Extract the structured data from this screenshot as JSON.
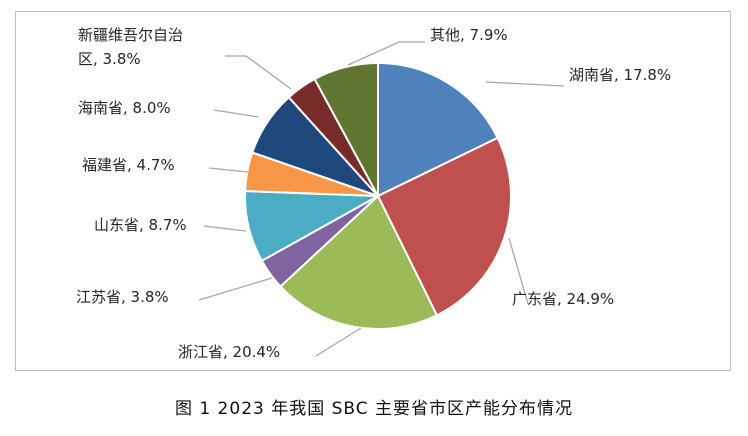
{
  "caption": "图 1  2023 年我国 SBC 主要省市区产能分布情况",
  "chart_data": {
    "type": "pie",
    "title": "",
    "slices": [
      {
        "name": "湖南省",
        "value": 17.8,
        "label": [
          "湖南省, 17.8%"
        ],
        "color": "#4f81bd"
      },
      {
        "name": "广东省",
        "value": 24.9,
        "label": [
          "广东省, 24.9%"
        ],
        "color": "#c0504d"
      },
      {
        "name": "浙江省",
        "value": 20.4,
        "label": [
          "浙江省, 20.4%"
        ],
        "color": "#9bbb59"
      },
      {
        "name": "江苏省",
        "value": 3.8,
        "label": [
          "江苏省, 3.8%"
        ],
        "color": "#8064a2"
      },
      {
        "name": "山东省",
        "value": 8.7,
        "label": [
          "山东省, 8.7%"
        ],
        "color": "#4bacc6"
      },
      {
        "name": "福建省",
        "value": 4.7,
        "label": [
          "福建省, 4.7%"
        ],
        "color": "#f79646"
      },
      {
        "name": "海南省",
        "value": 8.0,
        "label": [
          "海南省, 8.0%"
        ],
        "color": "#1f497d"
      },
      {
        "name": "新疆维吾尔自治区",
        "value": 3.8,
        "label": [
          "新疆维吾尔自治",
          "区, 3.8%"
        ],
        "color": "#772c2a"
      },
      {
        "name": "其他",
        "value": 7.9,
        "label": [
          "其他, 7.9%"
        ],
        "color": "#5f7530"
      }
    ]
  }
}
